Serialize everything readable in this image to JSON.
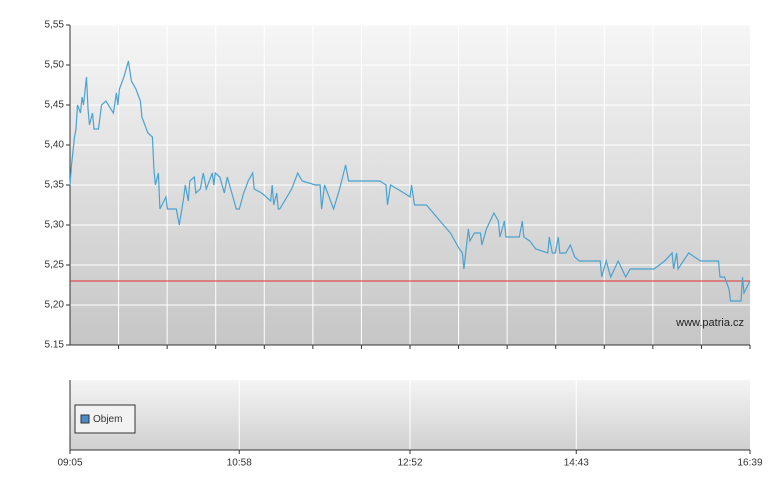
{
  "chart_data": [
    {
      "type": "line",
      "x": [
        "09:05",
        "09:06",
        "09:08",
        "09:09",
        "09:10",
        "09:12",
        "09:13",
        "09:14",
        "09:16",
        "09:17",
        "09:18",
        "09:20",
        "09:21",
        "09:24",
        "09:26",
        "09:29",
        "09:34",
        "09:36",
        "09:37",
        "09:38",
        "09:41",
        "09:44",
        "09:46",
        "09:49",
        "09:52",
        "09:53",
        "09:54",
        "09:57",
        "10:00",
        "10:01",
        "10:02",
        "10:04",
        "10:05",
        "10:09",
        "10:10",
        "10:16",
        "10:18",
        "10:21",
        "10:22",
        "10:24",
        "10:25",
        "10:28",
        "10:29",
        "10:32",
        "10:34",
        "10:36",
        "10:40",
        "10:41",
        "10:42",
        "10:45",
        "10:48",
        "10:50",
        "10:53",
        "10:56",
        "10:58",
        "11:01",
        "11:04",
        "11:07",
        "11:08",
        "11:13",
        "11:19",
        "11:20",
        "11:21",
        "11:23",
        "11:24",
        "11:25",
        "11:33",
        "11:37",
        "11:40",
        "11:49",
        "11:52",
        "11:53",
        "11:55",
        "12:01",
        "12:05",
        "12:09",
        "12:11",
        "12:32",
        "12:36",
        "12:37",
        "12:39",
        "12:48",
        "12:52",
        "12:53",
        "12:55",
        "13:03",
        "13:12",
        "13:19",
        "13:25",
        "13:27",
        "13:28",
        "13:31",
        "13:32",
        "13:35",
        "13:39",
        "13:40",
        "13:43",
        "13:48",
        "13:51",
        "13:52",
        "13:55",
        "13:56",
        "14:05",
        "14:07",
        "14:08",
        "14:12",
        "14:16",
        "14:24",
        "14:25",
        "14:27",
        "14:29",
        "14:31",
        "14:32",
        "14:36",
        "14:39",
        "14:42",
        "14:45",
        "14:59",
        "15:00",
        "15:03",
        "15:06",
        "15:11",
        "15:16",
        "15:19",
        "15:35",
        "15:42",
        "15:47",
        "15:48",
        "15:50",
        "15:51",
        "15:58",
        "16:06",
        "16:18",
        "16:19",
        "16:22",
        "16:25",
        "16:26",
        "16:33",
        "16:34",
        "16:35",
        "16:39"
      ],
      "series": [
        {
          "color": "#4aa3d0",
          "values": [
            5.35,
            5.375,
            5.41,
            5.42,
            5.45,
            5.44,
            5.46,
            5.45,
            5.485,
            5.445,
            5.425,
            5.44,
            5.42,
            5.42,
            5.45,
            5.455,
            5.44,
            5.465,
            5.45,
            5.47,
            5.485,
            5.505,
            5.48,
            5.47,
            5.455,
            5.435,
            5.43,
            5.415,
            5.41,
            5.37,
            5.35,
            5.365,
            5.32,
            5.335,
            5.32,
            5.32,
            5.3,
            5.335,
            5.35,
            5.33,
            5.355,
            5.36,
            5.34,
            5.345,
            5.365,
            5.345,
            5.365,
            5.35,
            5.365,
            5.36,
            5.34,
            5.36,
            5.34,
            5.32,
            5.32,
            5.34,
            5.355,
            5.365,
            5.345,
            5.34,
            5.33,
            5.35,
            5.325,
            5.34,
            5.32,
            5.32,
            5.345,
            5.365,
            5.355,
            5.35,
            5.35,
            5.32,
            5.35,
            5.32,
            5.345,
            5.375,
            5.355,
            5.355,
            5.35,
            5.325,
            5.35,
            5.34,
            5.335,
            5.35,
            5.325,
            5.325,
            5.305,
            5.29,
            5.27,
            5.265,
            5.245,
            5.295,
            5.28,
            5.29,
            5.29,
            5.275,
            5.295,
            5.315,
            5.305,
            5.285,
            5.305,
            5.285,
            5.285,
            5.305,
            5.285,
            5.28,
            5.27,
            5.265,
            5.285,
            5.265,
            5.265,
            5.285,
            5.265,
            5.265,
            5.275,
            5.26,
            5.255,
            5.255,
            5.235,
            5.255,
            5.235,
            5.255,
            5.235,
            5.245,
            5.245,
            5.255,
            5.265,
            5.245,
            5.265,
            5.245,
            5.265,
            5.255,
            5.255,
            5.235,
            5.235,
            5.22,
            5.205,
            5.205,
            5.235,
            5.215,
            5.23
          ]
        }
      ],
      "xlim": [
        "09:05",
        "16:39"
      ],
      "ylim": [
        5.15,
        5.55
      ],
      "yticks": [
        {
          "value": 5.15,
          "label": "5.15"
        },
        {
          "value": 5.2,
          "label": "5,20"
        },
        {
          "value": 5.25,
          "label": "5,25"
        },
        {
          "value": 5.3,
          "label": "5,30"
        },
        {
          "value": 5.35,
          "label": "5,35"
        },
        {
          "value": 5.4,
          "label": "5,40"
        },
        {
          "value": 5.45,
          "label": "5,45"
        },
        {
          "value": 5.5,
          "label": "5,50"
        },
        {
          "value": 5.55,
          "label": "5,55"
        }
      ],
      "reference_line": {
        "value": 5.23,
        "color": "#e03030"
      },
      "annotation": "www.patria.cz",
      "grid": true
    },
    {
      "type": "bar",
      "series": [
        {
          "name": "Objem",
          "color": "#4a8cc8",
          "values": []
        }
      ],
      "xlim": [
        "09:05",
        "16:39"
      ],
      "xticks": [
        "09:05",
        "10:58",
        "12:52",
        "14:43",
        "16:39"
      ],
      "legend": "upper-left",
      "grid": true
    }
  ]
}
